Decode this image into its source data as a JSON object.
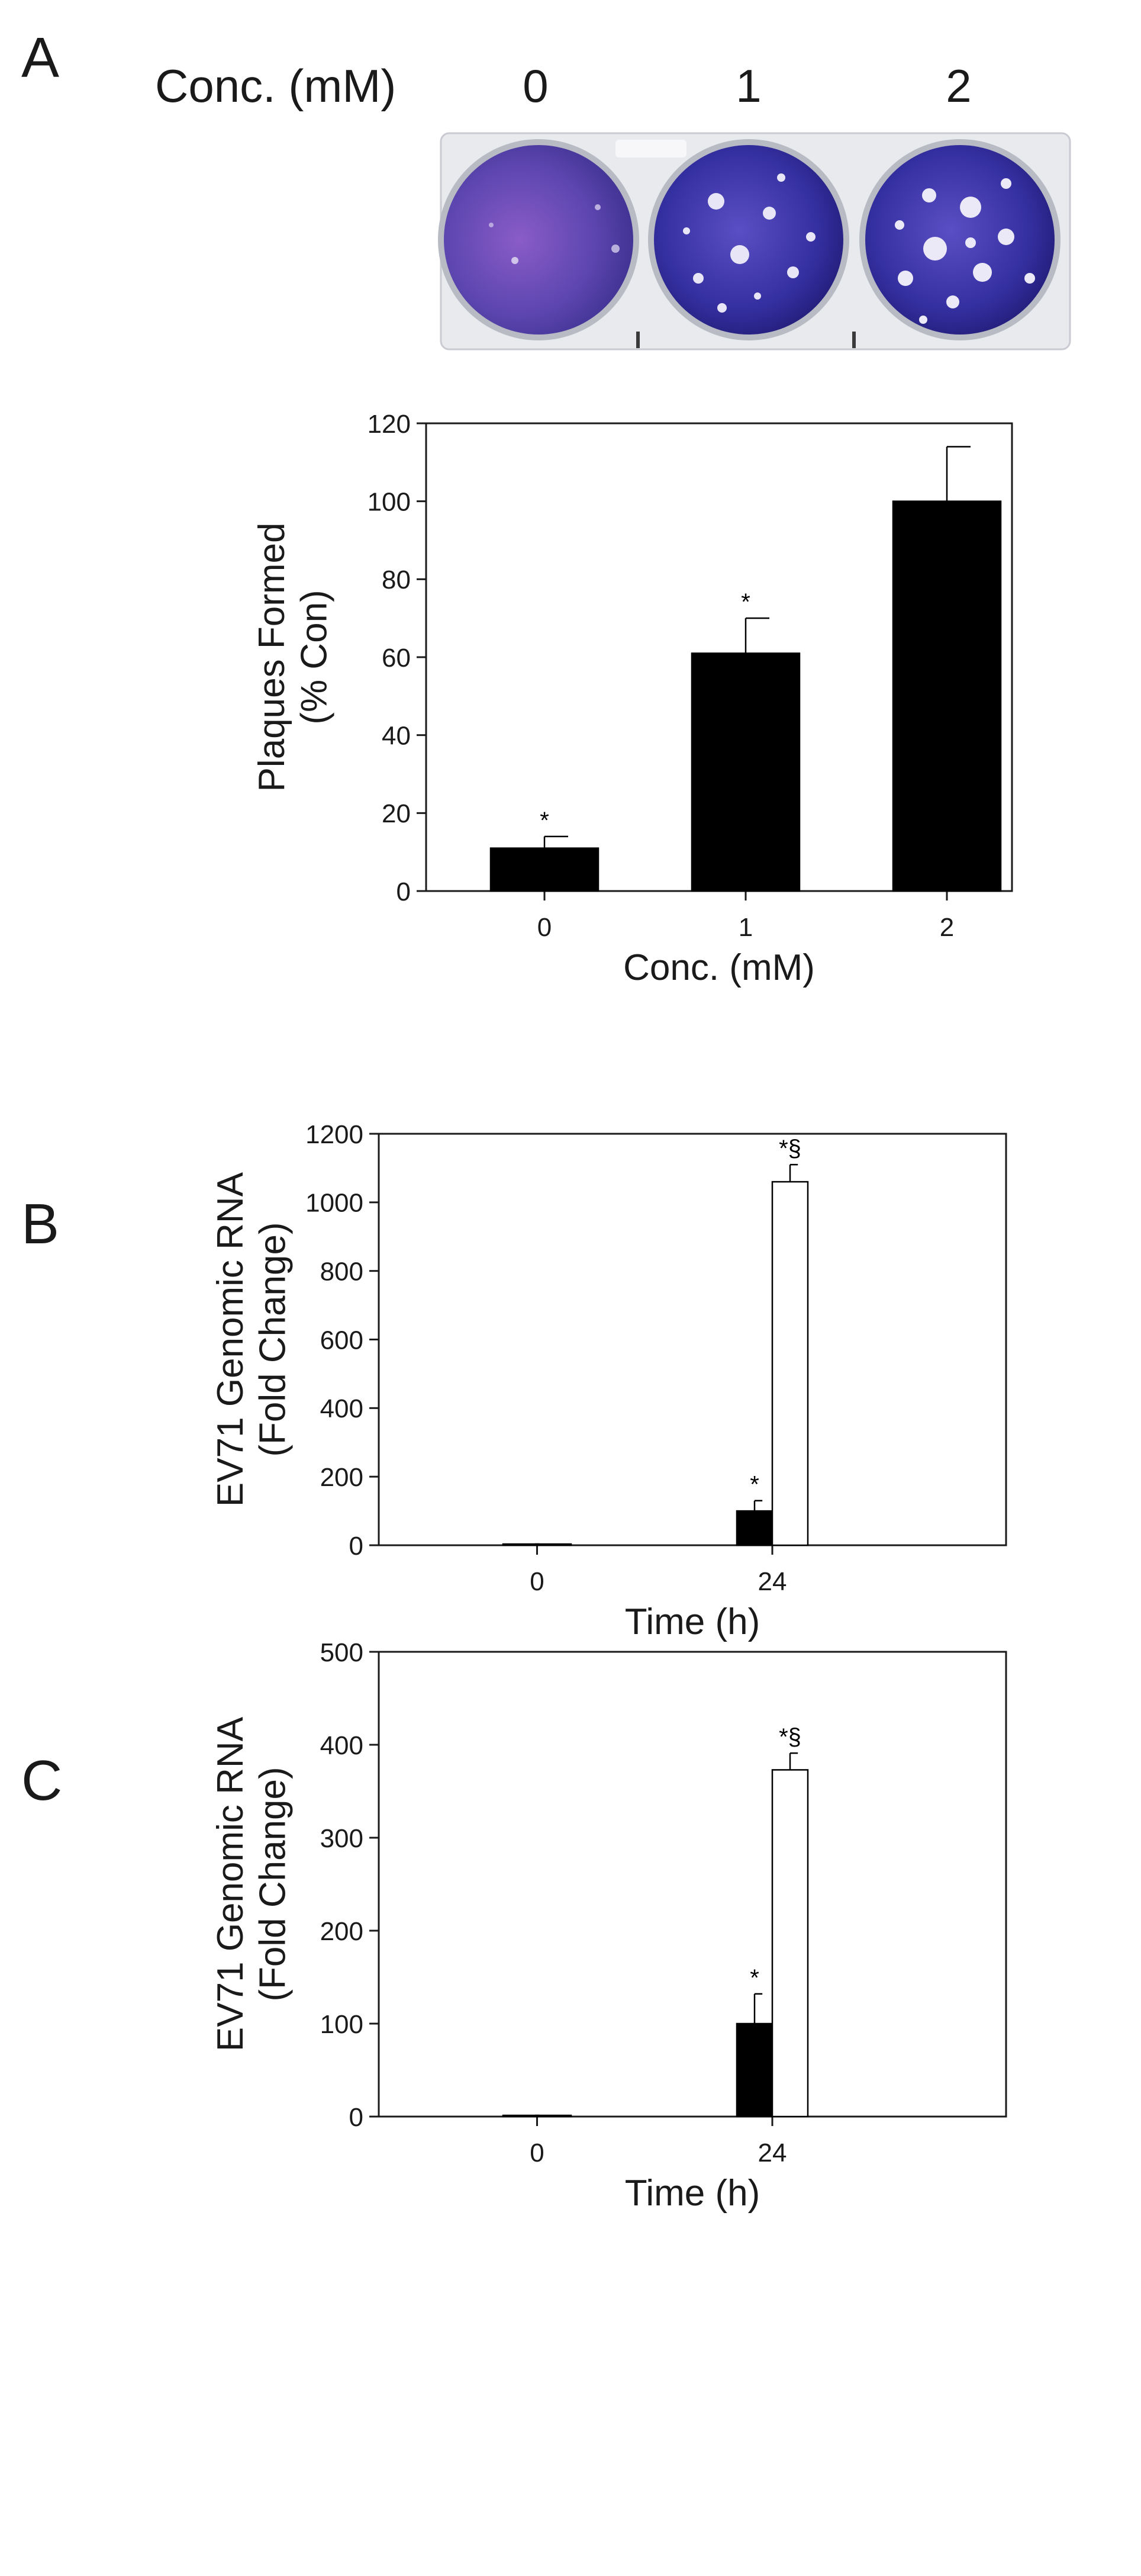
{
  "panels": {
    "A": {
      "letter": "A",
      "photo": {
        "header_label": "Conc. (mM)",
        "well_labels": [
          "0",
          "1",
          "2"
        ]
      }
    },
    "B": {
      "letter": "B"
    },
    "C": {
      "letter": "C"
    }
  },
  "colors": {
    "filled_bar": "#000000",
    "open_bar": "#ffffff",
    "axis": "#1a1a1a",
    "plate_frame": "#e8e8ec",
    "well_stain": "#3a36a8"
  },
  "chart_data": [
    {
      "panel": "A",
      "type": "bar",
      "categories": [
        "0",
        "1",
        "2"
      ],
      "series": [
        {
          "values": [
            11,
            61,
            100
          ],
          "errors": [
            3,
            9,
            14
          ],
          "annotations": [
            "*",
            "*",
            ""
          ]
        }
      ],
      "xlabel": "Conc. (mM)",
      "ylabel": "Plaques Formed\n(% Con)",
      "ylim": [
        0,
        120
      ],
      "yticks": [
        0,
        20,
        40,
        60,
        80,
        100,
        120
      ],
      "grid": false,
      "legend": "none"
    },
    {
      "panel": "B",
      "type": "bar",
      "categories": [
        "0",
        "24"
      ],
      "series": [
        {
          "values": [
            1,
            100
          ],
          "errors": [
            0,
            30
          ],
          "annotations": [
            "",
            "*"
          ],
          "fill": "black"
        },
        {
          "values": [
            1,
            1060
          ],
          "errors": [
            0,
            50
          ],
          "annotations": [
            "",
            "*§"
          ],
          "fill": "white"
        }
      ],
      "xlabel": "Time (h)",
      "ylabel": "EV71 Genomic RNA\n(Fold Change)",
      "ylim": [
        0,
        1200
      ],
      "yticks": [
        0,
        200,
        400,
        600,
        800,
        1000,
        1200
      ],
      "grid": false,
      "legend": "none"
    },
    {
      "panel": "C",
      "type": "bar",
      "categories": [
        "0",
        "24"
      ],
      "series": [
        {
          "values": [
            1,
            100
          ],
          "errors": [
            0,
            32
          ],
          "annotations": [
            "",
            "*"
          ],
          "fill": "black"
        },
        {
          "values": [
            1,
            373
          ],
          "errors": [
            0,
            18
          ],
          "annotations": [
            "",
            "*§"
          ],
          "fill": "white"
        }
      ],
      "xlabel": "Time (h)",
      "ylabel": "EV71 Genomic RNA\n(Fold Change)",
      "ylim": [
        0,
        500
      ],
      "yticks": [
        0,
        100,
        200,
        300,
        400,
        500
      ],
      "grid": false,
      "legend": "none"
    }
  ]
}
